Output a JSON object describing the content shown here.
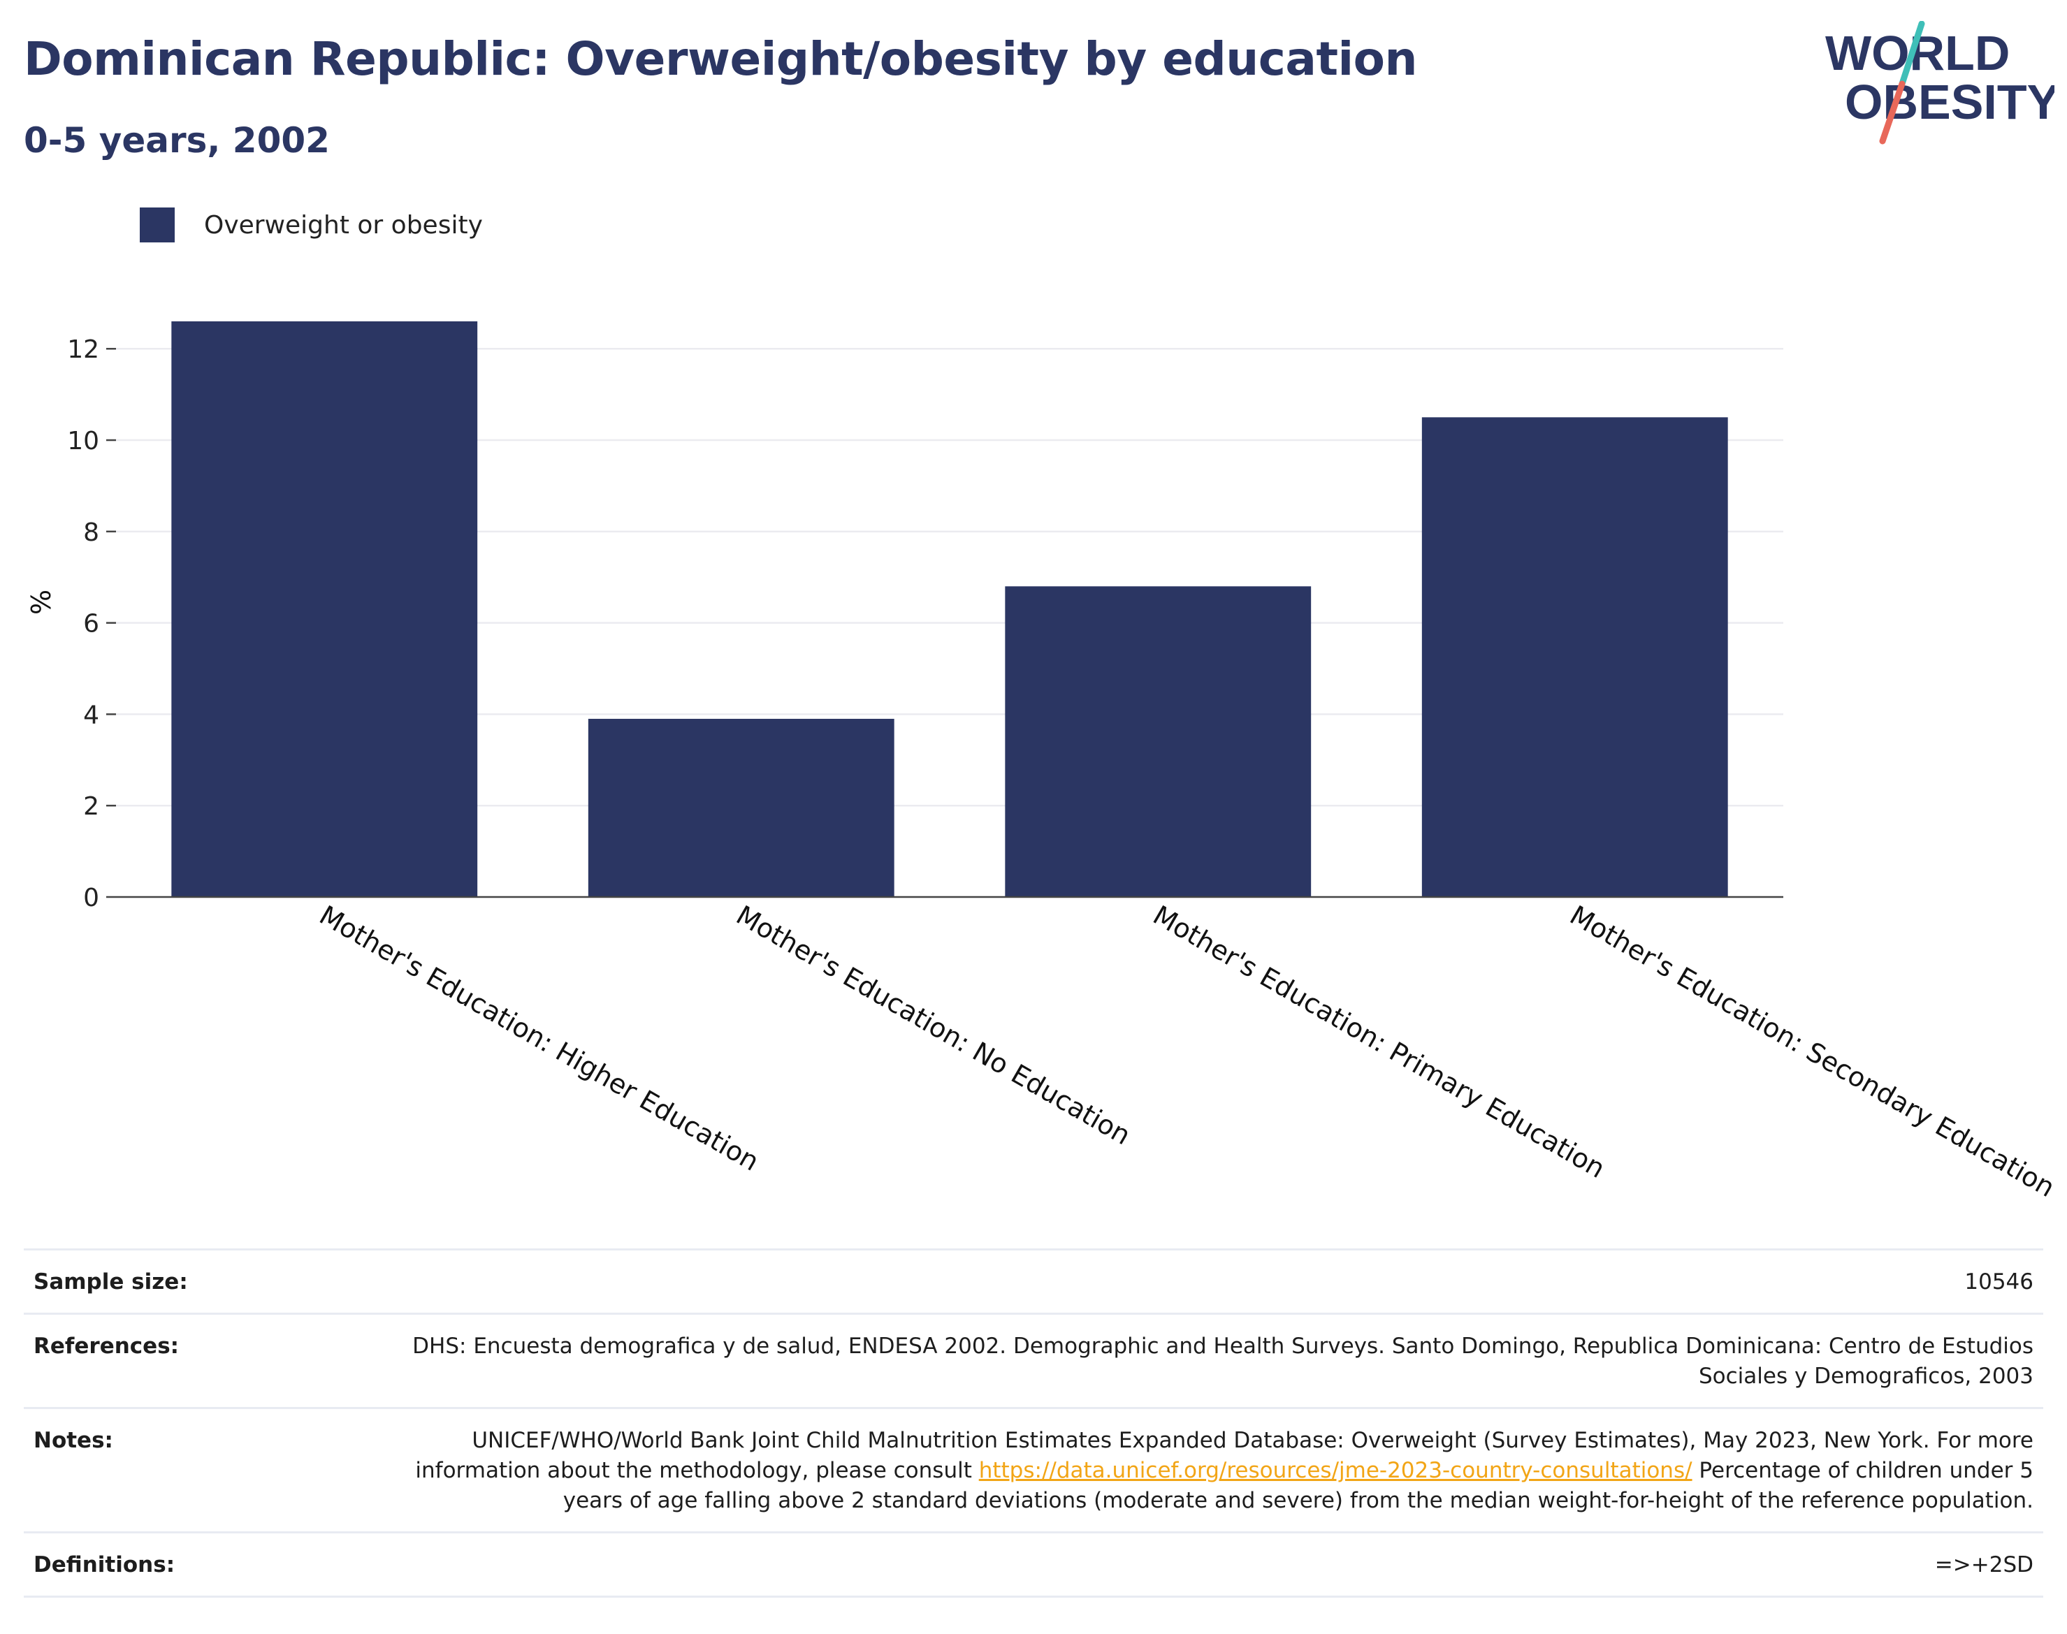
{
  "header": {
    "title": "Dominican Republic: Overweight/obesity by education",
    "subtitle": "0-5 years, 2002"
  },
  "logo": {
    "line1": "WORLD",
    "line2": "OBESITY",
    "slash_top_color": "#3fbfb8",
    "slash_bottom_color": "#e8685a",
    "text_color": "#2b3663"
  },
  "colors": {
    "bar": "#2b3663",
    "gridline": "#ebebf0",
    "link": "#f2a516"
  },
  "legend": {
    "label": "Overweight or obesity",
    "position": "top-left"
  },
  "chart_data": {
    "type": "bar",
    "categories": [
      "Mother's Education: Higher Education",
      "Mother's Education: No Education",
      "Mother's Education: Primary Education",
      "Mother's Education: Secondary Education"
    ],
    "series": [
      {
        "name": "Overweight or obesity",
        "values": [
          12.6,
          3.9,
          6.8,
          10.5
        ]
      }
    ],
    "ylabel": "%",
    "ylim": [
      0,
      12.6
    ],
    "yticks": [
      0,
      2,
      4,
      6,
      8,
      10,
      12
    ],
    "grid": true
  },
  "info": {
    "sample_size_label": "Sample size:",
    "sample_size_value": "10546",
    "references_label": "References:",
    "references_value": "DHS: Encuesta demografica y de salud, ENDESA 2002. Demographic and Health Surveys. Santo Domingo, Republica Dominicana: Centro de Estudios Sociales y Demograficos, 2003",
    "notes_label": "Notes:",
    "notes_text_before": "UNICEF/WHO/World Bank Joint Child Malnutrition Estimates Expanded Database: Overweight (Survey Estimates), May 2023, New York. For more information about the methodology, please consult ",
    "notes_link": "https://data.unicef.org/resources/jme-2023-country-consultations/",
    "notes_text_after": " Percentage of children under 5 years of age falling above 2 standard deviations (moderate and severe) from the median weight-for-height of the reference population.",
    "definitions_label": "Definitions:",
    "definitions_value": "=>+2SD"
  }
}
